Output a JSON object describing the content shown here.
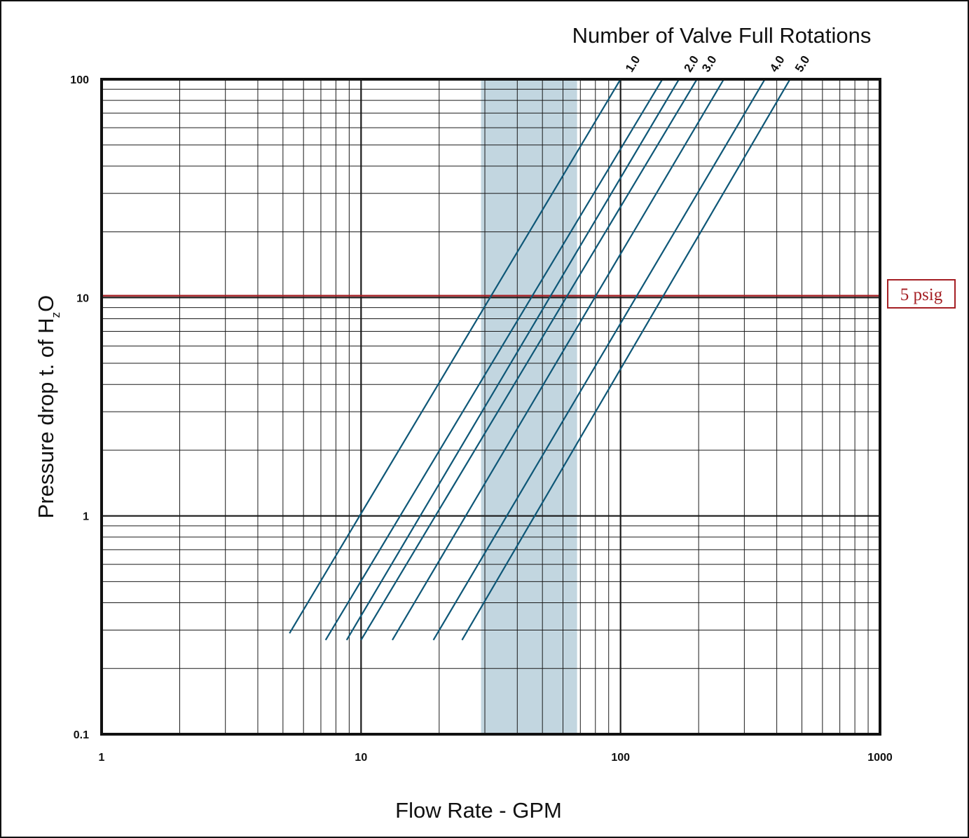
{
  "chart_data": {
    "type": "line",
    "title": "Number of Valve Full Rotations",
    "xlabel": "Flow Rate - GPM",
    "ylabel": "Pressure drop t. of H",
    "ylabel_sub": "z",
    "ylabel_tail": "O",
    "x_scale": "log",
    "y_scale": "log",
    "xlim": [
      1,
      1000
    ],
    "ylim": [
      0.1,
      100
    ],
    "x_ticks": [
      {
        "value": 1,
        "label": "1"
      },
      {
        "value": 10,
        "label": "10"
      },
      {
        "value": 100,
        "label": "100"
      },
      {
        "value": 1000,
        "label": "1000"
      }
    ],
    "y_ticks": [
      {
        "value": 0.1,
        "label": "0.1"
      },
      {
        "value": 1,
        "label": "1"
      },
      {
        "value": 10,
        "label": "10"
      },
      {
        "value": 100,
        "label": "100"
      }
    ],
    "grid": true,
    "shaded_band": {
      "x": [
        29,
        68
      ],
      "color": "#c2d6e0"
    },
    "reference_line": {
      "y": 10.2,
      "label": "5 psig",
      "color": "#a51f24"
    },
    "series_color": "#0e5777",
    "series": [
      {
        "name": "1.0",
        "x": [
          5.3,
          100
        ],
        "y": [
          0.29,
          100
        ]
      },
      {
        "name": "",
        "x": [
          7.3,
          145
        ],
        "y": [
          0.27,
          100
        ]
      },
      {
        "name": "2.0",
        "x": [
          8.8,
          168
        ],
        "y": [
          0.27,
          100
        ]
      },
      {
        "name": "3.0",
        "x": [
          10.0,
          197
        ],
        "y": [
          0.27,
          100
        ]
      },
      {
        "name": "",
        "x": [
          13.2,
          250
        ],
        "y": [
          0.27,
          100
        ]
      },
      {
        "name": "4.0",
        "x": [
          19.0,
          360
        ],
        "y": [
          0.27,
          100
        ]
      },
      {
        "name": "5.0",
        "x": [
          24.5,
          450
        ],
        "y": [
          0.27,
          100
        ]
      }
    ]
  }
}
